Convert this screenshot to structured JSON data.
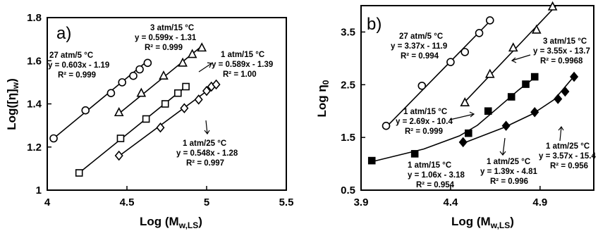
{
  "chart_data": [
    {
      "type": "scatter",
      "panel_label": "a)",
      "xlabel": "Log (M",
      "xlabel_sub": "w,LS",
      "xlabel_end": ")",
      "ylabel": "Log([η]",
      "ylabel_sub": "w",
      "ylabel_end": ")",
      "xlim": [
        4,
        5.5
      ],
      "ylim": [
        1,
        1.8
      ],
      "xticks": [
        "4",
        "4.5",
        "5",
        "5.5"
      ],
      "yticks": [
        "1",
        "1.2",
        "1.4",
        "1.6",
        "1.8"
      ],
      "series": [
        {
          "marker": "circle",
          "points": [
            [
              4.04,
              1.24
            ],
            [
              4.24,
              1.37
            ],
            [
              4.4,
              1.45
            ],
            [
              4.47,
              1.5
            ],
            [
              4.54,
              1.53
            ],
            [
              4.58,
              1.56
            ],
            [
              4.63,
              1.59
            ]
          ],
          "fit": [
            [
              4.04,
              1.24
            ],
            [
              4.63,
              1.6
            ]
          ],
          "annotation": [
            "27 atm/5 °C",
            "y = 0.603x - 1.19",
            "R² = 0.999"
          ]
        },
        {
          "marker": "triangle",
          "points": [
            [
              4.45,
              1.36
            ],
            [
              4.59,
              1.45
            ],
            [
              4.73,
              1.53
            ],
            [
              4.85,
              1.59
            ],
            [
              4.91,
              1.63
            ],
            [
              4.97,
              1.66
            ]
          ],
          "fit": [
            [
              4.45,
              1.355
            ],
            [
              4.97,
              1.668
            ]
          ],
          "annotation": [
            "3 atm/15 °C",
            "y = 0.599x - 1.31",
            "R² = 0.999"
          ]
        },
        {
          "marker": "square",
          "points": [
            [
              4.2,
              1.08
            ],
            [
              4.46,
              1.24
            ],
            [
              4.62,
              1.33
            ],
            [
              4.74,
              1.4
            ],
            [
              4.82,
              1.45
            ],
            [
              4.87,
              1.48
            ]
          ],
          "fit": [
            [
              4.2,
              1.08
            ],
            [
              4.87,
              1.48
            ]
          ],
          "annotation": [
            "1 atm/15 °C",
            "y = 0.589x - 1.39",
            "R² = 1.00"
          ]
        },
        {
          "marker": "diamond",
          "points": [
            [
              4.45,
              1.16
            ],
            [
              4.71,
              1.29
            ],
            [
              4.86,
              1.38
            ],
            [
              4.95,
              1.42
            ],
            [
              5.0,
              1.46
            ],
            [
              5.03,
              1.48
            ],
            [
              5.06,
              1.49
            ]
          ],
          "fit": [
            [
              4.45,
              1.158
            ],
            [
              5.07,
              1.497
            ]
          ],
          "annotation": [
            "1 atm/25 °C",
            "y = 0.548x - 1.28",
            "R² = 0.997"
          ]
        }
      ]
    },
    {
      "type": "scatter",
      "panel_label": "b)",
      "xlabel": "Log (M",
      "xlabel_sub": "w,LS",
      "xlabel_end": ")",
      "ylabel": "Log η",
      "ylabel_sub": "0",
      "ylabel_end": "",
      "xlim": [
        3.9,
        5.2
      ],
      "ylim": [
        0.5,
        4.0
      ],
      "xticks": [
        "3.9",
        "4.4",
        "4.9"
      ],
      "yticks": [
        "0.5",
        "1.5",
        "2.5",
        "3.5"
      ],
      "series": [
        {
          "marker": "circle",
          "points": [
            [
              4.04,
              1.72
            ],
            [
              4.24,
              2.48
            ],
            [
              4.4,
              2.93
            ],
            [
              4.48,
              3.12
            ],
            [
              4.56,
              3.48
            ],
            [
              4.62,
              3.72
            ]
          ],
          "fit": [
            [
              4.03,
              1.66
            ],
            [
              4.63,
              3.74
            ]
          ],
          "annotation": [
            "27 atm/5 °C",
            "y = 3.37x - 11.9",
            "R² = 0.994"
          ]
        },
        {
          "marker": "triangle",
          "points": [
            [
              4.48,
              2.16
            ],
            [
              4.62,
              2.7
            ],
            [
              4.75,
              3.2
            ],
            [
              4.88,
              3.54
            ],
            [
              4.97,
              3.98
            ]
          ],
          "fit": [
            [
              4.47,
              2.14
            ],
            [
              4.99,
              4.0
            ]
          ],
          "annotation": [
            "3 atm/15 °C",
            "y = 3.55x - 13.7",
            "R² = 0.9968"
          ]
        },
        {
          "marker": "square",
          "points": [
            [
              3.96,
              1.06
            ],
            [
              4.2,
              1.19
            ],
            [
              4.5,
              1.58
            ],
            [
              4.61,
              2.0
            ],
            [
              4.74,
              2.27
            ],
            [
              4.82,
              2.51
            ],
            [
              4.87,
              2.65
            ]
          ],
          "fit": [
            [
              3.96,
              1.04
            ],
            [
              4.25,
              1.28
            ],
            [
              4.45,
              1.53
            ],
            [
              4.55,
              1.73
            ],
            [
              4.65,
              2.02
            ],
            [
              4.78,
              2.4
            ],
            [
              4.88,
              2.66
            ]
          ],
          "annotation": [
            "1 atm/15 °C",
            "y = 2.69x - 10.4",
            "R² = 0.999"
          ]
        },
        {
          "marker": "diamond",
          "points": [
            [
              4.47,
              1.41
            ],
            [
              4.71,
              1.72
            ],
            [
              4.87,
              1.98
            ],
            [
              5.0,
              2.23
            ],
            [
              5.04,
              2.37
            ],
            [
              5.09,
              2.65
            ]
          ],
          "fit": [
            [
              4.47,
              1.39
            ],
            [
              4.7,
              1.69
            ],
            [
              4.86,
              1.95
            ],
            [
              4.98,
              2.22
            ],
            [
              5.1,
              2.7
            ]
          ],
          "annotation": [
            "1 atm/25 °C",
            "y = 3.57x - 15.4",
            "R² = 0.956"
          ]
        }
      ],
      "extra_annotations": [
        [
          "1 atm/15 °C",
          "y = 1.06x - 3.18",
          "R² = 0.954"
        ],
        [
          "1 atm/25 °C",
          "y = 1.39x - 4.81",
          "R² = 0.996"
        ]
      ]
    }
  ]
}
